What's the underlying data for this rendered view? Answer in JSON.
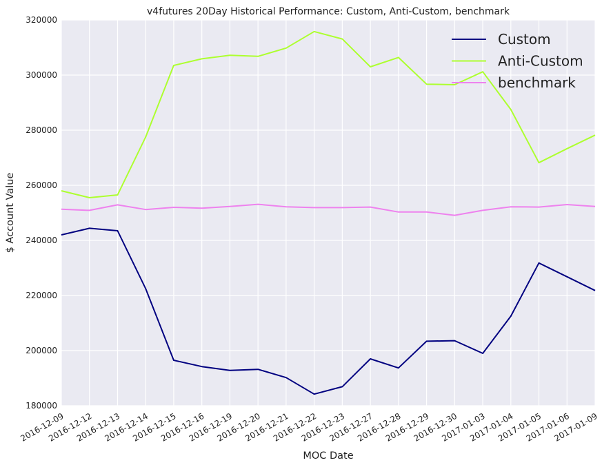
{
  "chart_data": {
    "type": "line",
    "title": "v4futures 20Day Historical Performance: Custom, Anti-Custom, benchmark",
    "xlabel": "MOC Date",
    "ylabel": "$ Account Value",
    "x": [
      "2016-12-09",
      "2016-12-12",
      "2016-12-13",
      "2016-12-14",
      "2016-12-15",
      "2016-12-16",
      "2016-12-19",
      "2016-12-20",
      "2016-12-21",
      "2016-12-22",
      "2016-12-23",
      "2016-12-27",
      "2016-12-28",
      "2016-12-29",
      "2016-12-30",
      "2017-01-03",
      "2017-01-04",
      "2017-01-05",
      "2017-01-06",
      "2017-01-09"
    ],
    "ylim": [
      180000,
      320000
    ],
    "yticks": [
      180000,
      200000,
      220000,
      240000,
      260000,
      280000,
      300000,
      320000
    ],
    "grid": true,
    "legend_position": "top-right",
    "series": [
      {
        "name": "Custom",
        "color": "#000080",
        "values": [
          242000,
          244400,
          243500,
          222500,
          196500,
          194200,
          192800,
          193200,
          190200,
          184200,
          186900,
          197000,
          193700,
          203400,
          203600,
          199000,
          212500,
          231800,
          226800,
          221800
        ]
      },
      {
        "name": "Anti-Custom",
        "color": "#adff2f",
        "values": [
          258000,
          255500,
          256500,
          277500,
          303500,
          305900,
          307200,
          306800,
          309800,
          315800,
          313100,
          303000,
          306400,
          296700,
          296500,
          301200,
          287500,
          268200,
          273300,
          278200
        ]
      },
      {
        "name": "benchmark",
        "color": "#ee82ee",
        "values": [
          251300,
          250900,
          252900,
          251200,
          252000,
          251700,
          252300,
          253100,
          252200,
          251900,
          251900,
          252100,
          250300,
          250300,
          249100,
          250900,
          252200,
          252100,
          253000,
          252300
        ]
      }
    ]
  }
}
